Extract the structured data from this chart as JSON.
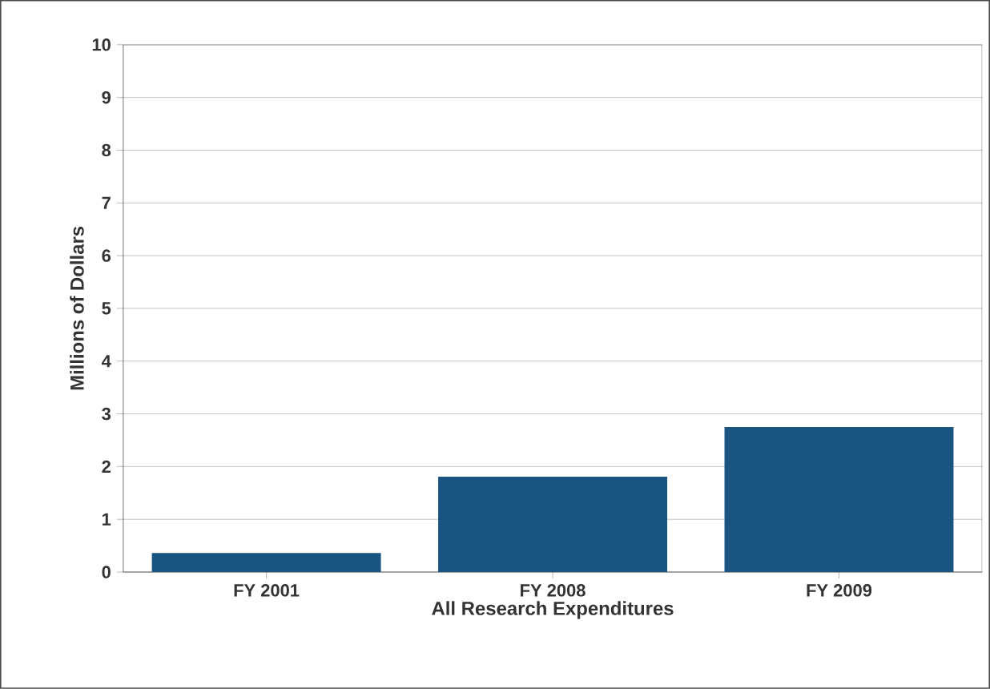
{
  "chart_data": {
    "type": "bar",
    "xlabel": "All Research Expenditures",
    "ylabel": "Millions of Dollars",
    "categories": [
      "FY 2001",
      "FY 2008",
      "FY 2009"
    ],
    "values": [
      0.36,
      1.81,
      2.75
    ],
    "color": "#1a5480",
    "ylim": [
      0,
      10
    ],
    "yticks": [
      0,
      1,
      2,
      3,
      4,
      5,
      6,
      7,
      8,
      9,
      10
    ],
    "grid": "y"
  }
}
